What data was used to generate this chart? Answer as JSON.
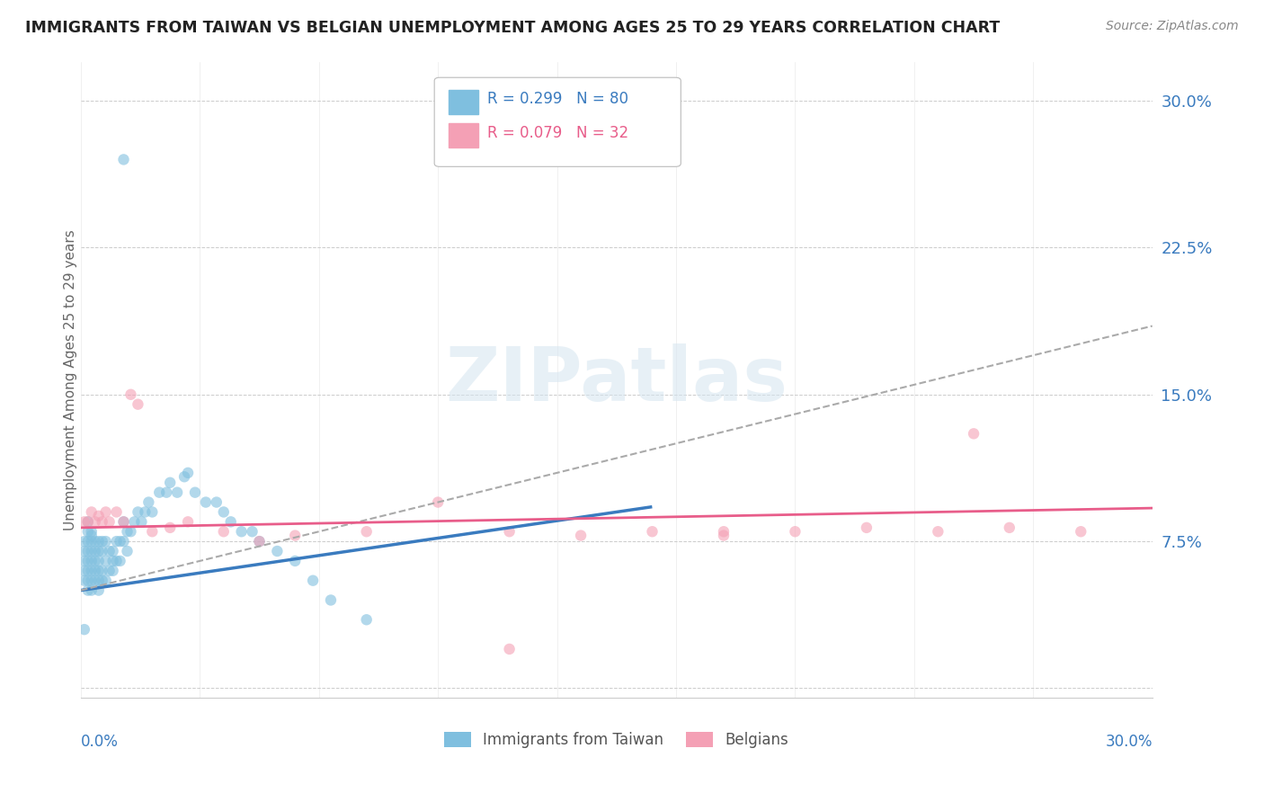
{
  "title": "IMMIGRANTS FROM TAIWAN VS BELGIAN UNEMPLOYMENT AMONG AGES 25 TO 29 YEARS CORRELATION CHART",
  "source": "Source: ZipAtlas.com",
  "ylabel": "Unemployment Among Ages 25 to 29 years",
  "legend_label1": "Immigrants from Taiwan",
  "legend_label2": "Belgians",
  "R1": 0.299,
  "N1": 80,
  "R2": 0.079,
  "N2": 32,
  "color_blue": "#7fbfdf",
  "color_pink": "#f4a0b5",
  "color_blue_line": "#3a7bbf",
  "color_pink_line": "#e85d8a",
  "color_blue_text": "#3a7bbf",
  "color_pink_text": "#e85d8a",
  "color_dashed": "#aaaaaa",
  "watermark_color": "#d5e5f0",
  "xlim": [
    0.0,
    0.3
  ],
  "ylim": [
    -0.005,
    0.32
  ],
  "ytick_vals": [
    0.0,
    0.075,
    0.15,
    0.225,
    0.3
  ],
  "ytick_labels": [
    "",
    "7.5%",
    "15.0%",
    "22.5%",
    "30.0%"
  ],
  "blue_x": [
    0.001,
    0.001,
    0.001,
    0.001,
    0.001,
    0.002,
    0.002,
    0.002,
    0.002,
    0.002,
    0.002,
    0.002,
    0.002,
    0.003,
    0.003,
    0.003,
    0.003,
    0.003,
    0.003,
    0.003,
    0.003,
    0.004,
    0.004,
    0.004,
    0.004,
    0.004,
    0.005,
    0.005,
    0.005,
    0.005,
    0.005,
    0.005,
    0.006,
    0.006,
    0.006,
    0.006,
    0.007,
    0.007,
    0.007,
    0.008,
    0.008,
    0.009,
    0.009,
    0.009,
    0.01,
    0.01,
    0.011,
    0.011,
    0.012,
    0.012,
    0.013,
    0.013,
    0.014,
    0.015,
    0.016,
    0.017,
    0.018,
    0.019,
    0.02,
    0.022,
    0.024,
    0.025,
    0.027,
    0.029,
    0.03,
    0.032,
    0.035,
    0.038,
    0.04,
    0.042,
    0.045,
    0.048,
    0.05,
    0.055,
    0.06,
    0.065,
    0.07,
    0.08,
    0.012,
    0.001
  ],
  "blue_y": [
    0.055,
    0.06,
    0.065,
    0.07,
    0.075,
    0.05,
    0.055,
    0.06,
    0.065,
    0.07,
    0.075,
    0.08,
    0.085,
    0.05,
    0.055,
    0.06,
    0.065,
    0.07,
    0.075,
    0.078,
    0.08,
    0.055,
    0.06,
    0.065,
    0.07,
    0.075,
    0.05,
    0.055,
    0.06,
    0.065,
    0.07,
    0.075,
    0.055,
    0.06,
    0.07,
    0.075,
    0.055,
    0.065,
    0.075,
    0.06,
    0.07,
    0.06,
    0.065,
    0.07,
    0.065,
    0.075,
    0.065,
    0.075,
    0.075,
    0.085,
    0.07,
    0.08,
    0.08,
    0.085,
    0.09,
    0.085,
    0.09,
    0.095,
    0.09,
    0.1,
    0.1,
    0.105,
    0.1,
    0.108,
    0.11,
    0.1,
    0.095,
    0.095,
    0.09,
    0.085,
    0.08,
    0.08,
    0.075,
    0.07,
    0.065,
    0.055,
    0.045,
    0.035,
    0.27,
    0.03
  ],
  "pink_x": [
    0.001,
    0.002,
    0.003,
    0.004,
    0.005,
    0.006,
    0.007,
    0.008,
    0.01,
    0.012,
    0.014,
    0.016,
    0.02,
    0.025,
    0.03,
    0.04,
    0.05,
    0.06,
    0.08,
    0.1,
    0.12,
    0.14,
    0.16,
    0.18,
    0.2,
    0.22,
    0.24,
    0.26,
    0.28,
    0.25,
    0.18,
    0.12
  ],
  "pink_y": [
    0.085,
    0.085,
    0.09,
    0.085,
    0.088,
    0.085,
    0.09,
    0.085,
    0.09,
    0.085,
    0.15,
    0.145,
    0.08,
    0.082,
    0.085,
    0.08,
    0.075,
    0.078,
    0.08,
    0.095,
    0.08,
    0.078,
    0.08,
    0.078,
    0.08,
    0.082,
    0.08,
    0.082,
    0.08,
    0.13,
    0.08,
    0.02
  ]
}
